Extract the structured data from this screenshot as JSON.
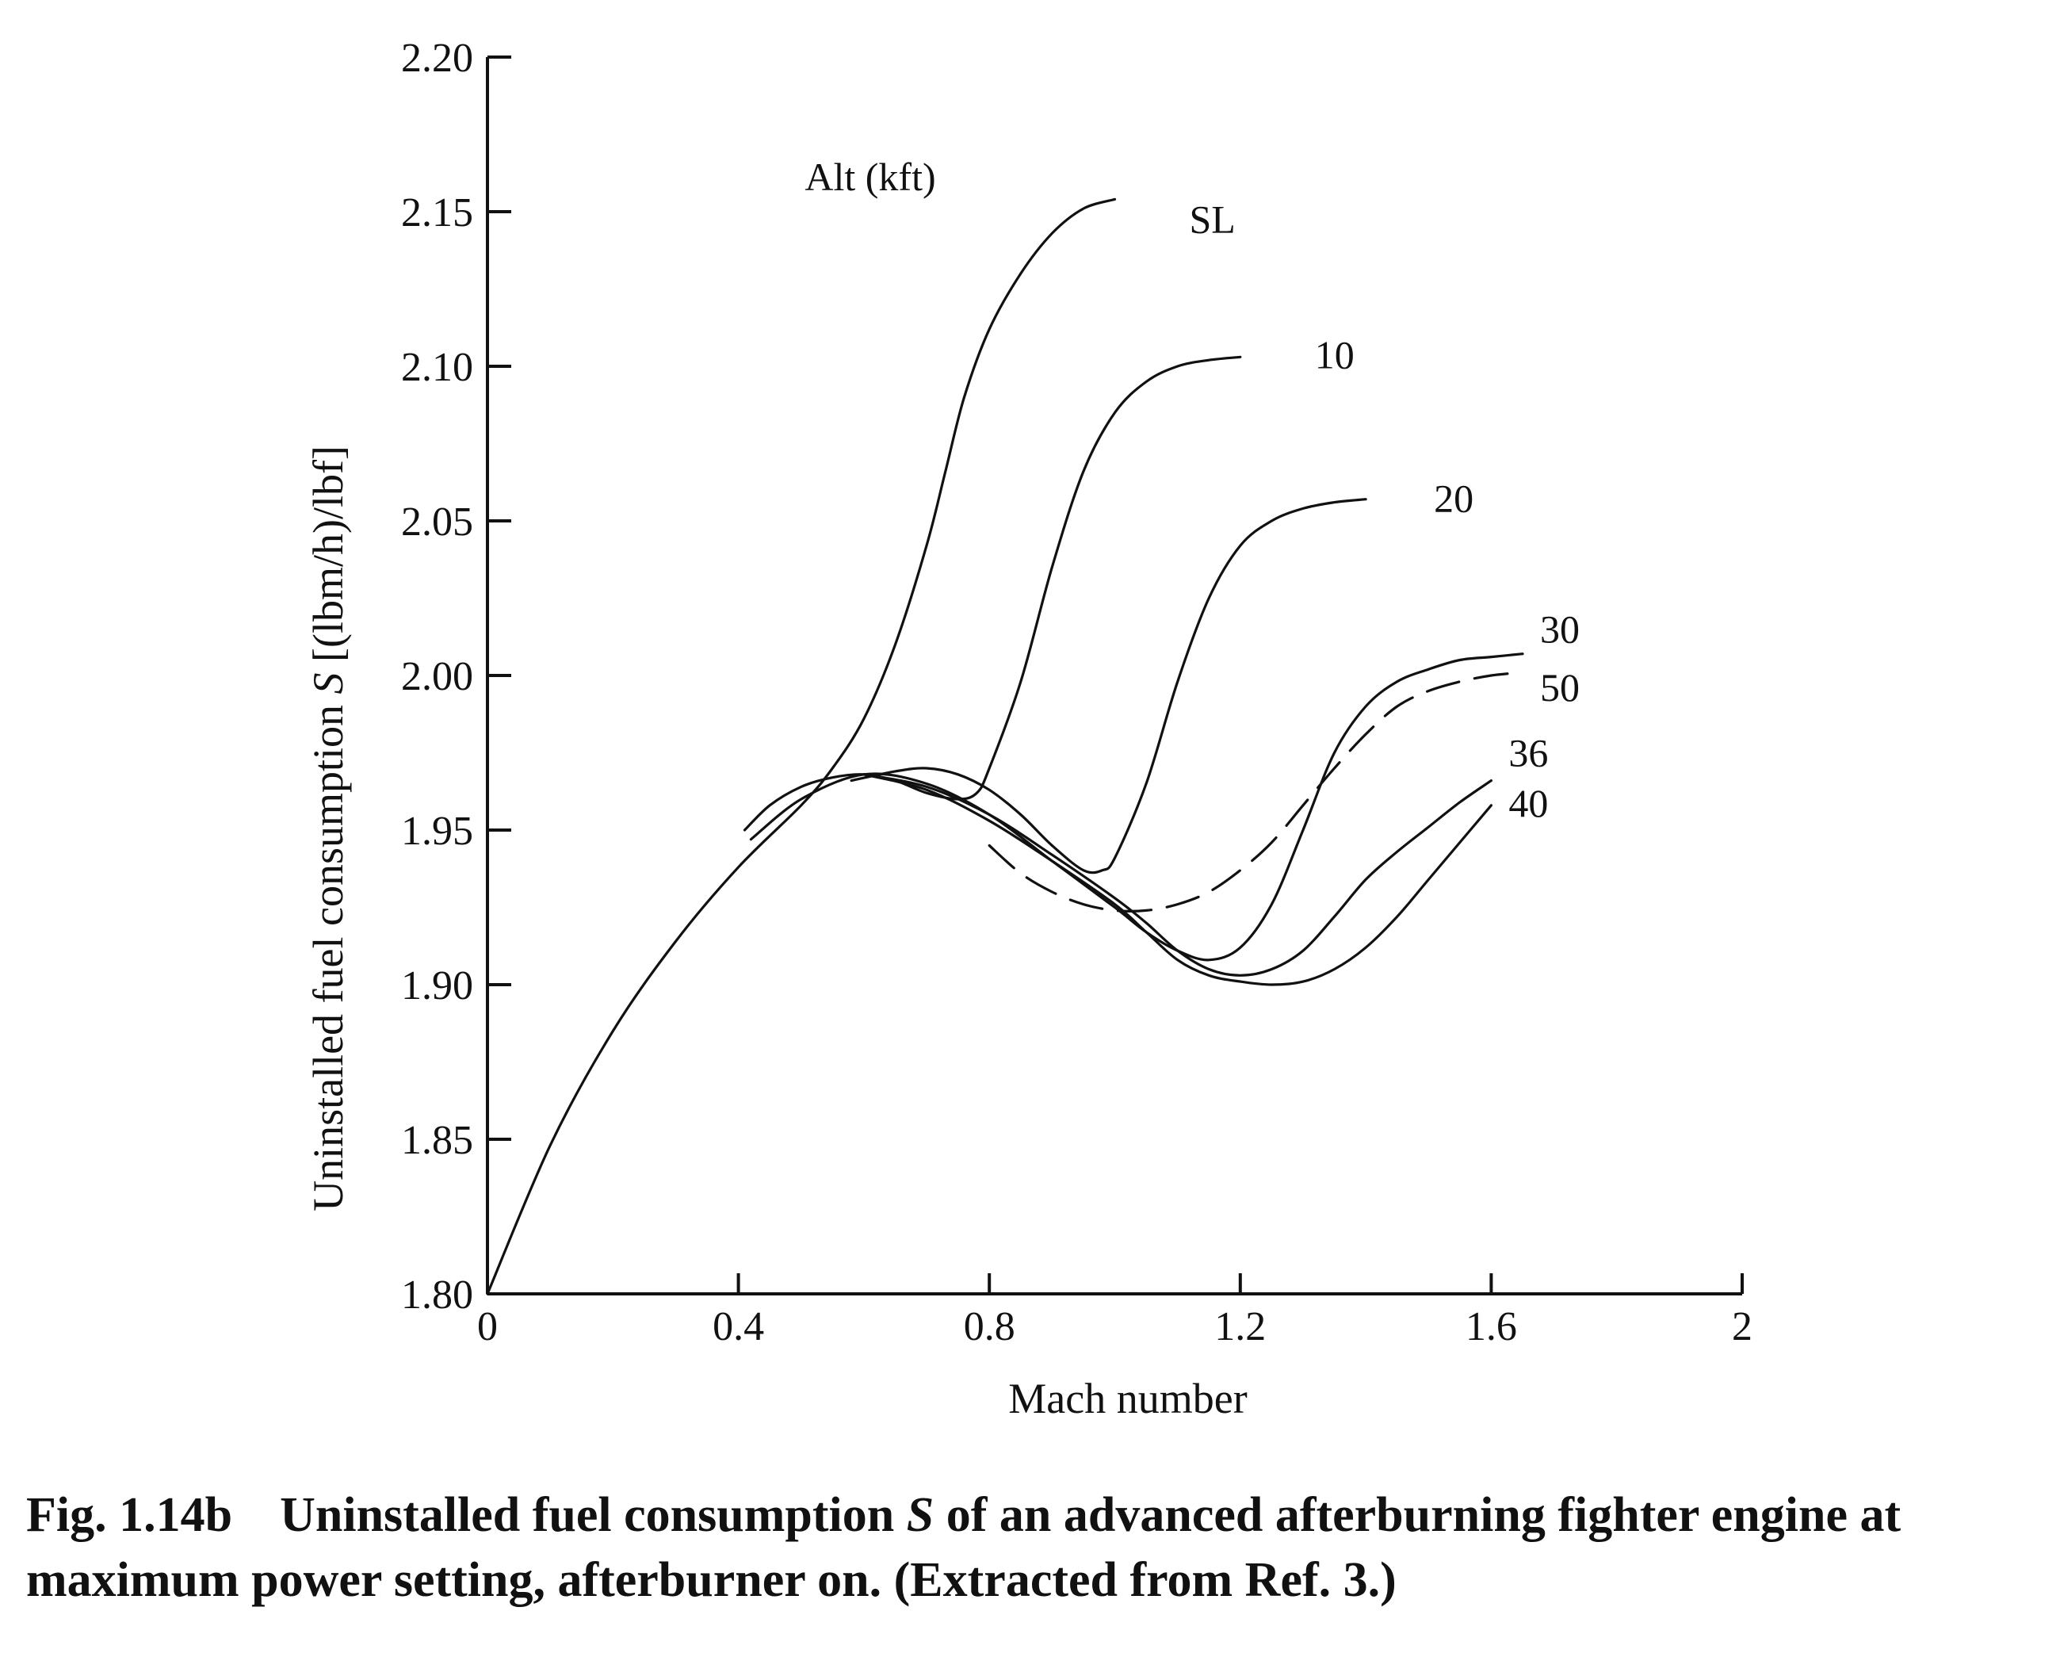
{
  "chart_data": {
    "type": "line",
    "xlabel": "Mach number",
    "ylabel_prefix": "Uninstalled fuel consumption ",
    "ylabel_symbol": "S",
    "ylabel_suffix": " [(lbm/h)/lbf]",
    "xlim": [
      0,
      2
    ],
    "ylim": [
      1.8,
      2.2
    ],
    "x_ticks": [
      0,
      0.4,
      0.8,
      1.2,
      1.6,
      2
    ],
    "x_tick_labels": [
      "0",
      "0.4",
      "0.8",
      "1.2",
      "1.6",
      "2"
    ],
    "y_ticks": [
      1.8,
      1.85,
      1.9,
      1.95,
      2.0,
      2.05,
      2.1,
      2.15,
      2.2
    ],
    "y_tick_labels": [
      "1.80",
      "1.85",
      "1.90",
      "1.95",
      "2.00",
      "2.05",
      "2.10",
      "2.15",
      "2.20"
    ],
    "legend_title": "Alt (kft)",
    "grid": false,
    "series": [
      {
        "name": "SL",
        "style": "solid",
        "x": [
          0,
          0.1,
          0.2,
          0.3,
          0.4,
          0.5,
          0.55,
          0.6,
          0.65,
          0.7,
          0.73,
          0.76,
          0.8,
          0.85,
          0.9,
          0.95,
          1.0
        ],
        "y": [
          1.8,
          1.848,
          1.885,
          1.914,
          1.938,
          1.958,
          1.97,
          1.986,
          2.01,
          2.042,
          2.066,
          2.09,
          2.112,
          2.13,
          2.143,
          2.151,
          2.154
        ]
      },
      {
        "name": "10",
        "style": "solid",
        "x": [
          0.41,
          0.45,
          0.5,
          0.55,
          0.6,
          0.65,
          0.7,
          0.75,
          0.78,
          0.8,
          0.85,
          0.9,
          0.95,
          1.0,
          1.05,
          1.1,
          1.15,
          1.2
        ],
        "y": [
          1.95,
          1.958,
          1.964,
          1.967,
          1.968,
          1.966,
          1.962,
          1.96,
          1.962,
          1.97,
          1.998,
          2.035,
          2.066,
          2.085,
          2.095,
          2.1,
          2.102,
          2.103
        ]
      },
      {
        "name": "20",
        "style": "solid",
        "x": [
          0.58,
          0.65,
          0.7,
          0.75,
          0.8,
          0.85,
          0.9,
          0.95,
          0.98,
          1.0,
          1.05,
          1.1,
          1.15,
          1.2,
          1.25,
          1.3,
          1.35,
          1.4
        ],
        "y": [
          1.966,
          1.969,
          1.97,
          1.968,
          1.963,
          1.955,
          1.945,
          1.937,
          1.937,
          1.941,
          1.965,
          1.998,
          2.025,
          2.042,
          2.05,
          2.054,
          2.056,
          2.057
        ]
      },
      {
        "name": "30",
        "style": "solid",
        "x": [
          0.42,
          0.5,
          0.6,
          0.7,
          0.8,
          0.9,
          1.0,
          1.05,
          1.1,
          1.15,
          1.2,
          1.25,
          1.3,
          1.35,
          1.4,
          1.45,
          1.5,
          1.55,
          1.6,
          1.65
        ],
        "y": [
          1.947,
          1.96,
          1.968,
          1.965,
          1.955,
          1.94,
          1.925,
          1.917,
          1.911,
          1.908,
          1.912,
          1.926,
          1.95,
          1.975,
          1.99,
          1.998,
          2.002,
          2.005,
          2.006,
          2.007
        ]
      },
      {
        "name": "50",
        "style": "dashed",
        "x": [
          0.8,
          0.85,
          0.9,
          0.95,
          1.0,
          1.05,
          1.1,
          1.15,
          1.2,
          1.25,
          1.3,
          1.35,
          1.4,
          1.45,
          1.5,
          1.55,
          1.6,
          1.65
        ],
        "y": [
          1.945,
          1.936,
          1.93,
          1.926,
          1.924,
          1.924,
          1.926,
          1.93,
          1.937,
          1.946,
          1.958,
          1.97,
          1.981,
          1.99,
          1.995,
          1.998,
          2.0,
          2.001
        ]
      },
      {
        "name": "36",
        "style": "solid",
        "x": [
          0.6,
          0.7,
          0.8,
          0.9,
          1.0,
          1.05,
          1.1,
          1.15,
          1.2,
          1.25,
          1.3,
          1.35,
          1.4,
          1.45,
          1.5,
          1.55,
          1.6
        ],
        "y": [
          1.968,
          1.964,
          1.955,
          1.942,
          1.928,
          1.92,
          1.911,
          1.905,
          1.903,
          1.905,
          1.911,
          1.922,
          1.934,
          1.943,
          1.951,
          1.959,
          1.966
        ]
      },
      {
        "name": "40",
        "style": "solid",
        "x": [
          0.6,
          0.7,
          0.8,
          0.9,
          1.0,
          1.05,
          1.1,
          1.15,
          1.2,
          1.25,
          1.3,
          1.35,
          1.4,
          1.45,
          1.5,
          1.55,
          1.6
        ],
        "y": [
          1.968,
          1.963,
          1.953,
          1.94,
          1.926,
          1.917,
          1.908,
          1.903,
          1.901,
          1.9,
          1.901,
          1.905,
          1.912,
          1.922,
          1.934,
          1.946,
          1.958
        ]
      }
    ]
  },
  "caption": {
    "fig_num": "Fig. 1.14b",
    "text_before": "Uninstalled fuel consumption ",
    "symbol": "S",
    "text_after": " of an advanced afterburning fighter engine at maximum power setting, afterburner on. (Extracted from Ref. 3.)"
  }
}
